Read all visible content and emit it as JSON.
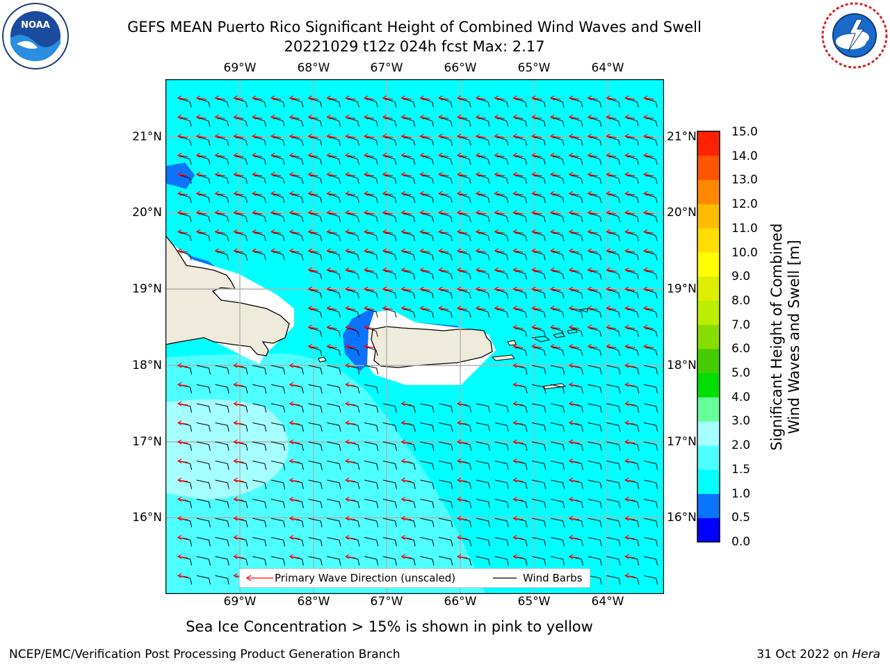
{
  "title_line1": "GEFS MEAN Puerto Rico Significant Height of Combined Wind Waves and Swell",
  "title_line2": "20221029 t12z 024h fcst   Max: 2.17",
  "lon_ticks": [
    "69°W",
    "68°W",
    "67°W",
    "66°W",
    "65°W",
    "64°W"
  ],
  "lat_ticks": [
    "21°N",
    "20°N",
    "19°N",
    "18°N",
    "17°N",
    "16°N"
  ],
  "colorbar": {
    "title_line1": "Significant Height of Combined",
    "title_line2": "Wind Waves and Swell [m]",
    "labels": [
      "15.0",
      "14.0",
      "13.0",
      "12.0",
      "11.0",
      "10.0",
      "9.0",
      "8.0",
      "7.0",
      "6.0",
      "5.0",
      "4.0",
      "3.0",
      "2.0",
      "1.5",
      "1.0",
      "0.5",
      "0.0"
    ],
    "colors_bottom_to_top": [
      "#0000ff",
      "#0a74ff",
      "#00ffff",
      "#4dffff",
      "#a6ffff",
      "#66ff99",
      "#00dd00",
      "#44cc00",
      "#88dd00",
      "#bbee00",
      "#ddee00",
      "#ffff00",
      "#ffdd00",
      "#ffbb00",
      "#ff8800",
      "#ff5500",
      "#ff2200"
    ]
  },
  "legend": {
    "primary_wave": "Primary Wave Direction (unscaled)",
    "wind_barbs": "Wind Barbs",
    "wave_color": "#ff0000",
    "barb_color": "#000000"
  },
  "caption": "Sea Ice Concentration > 15% is shown in pink to yellow",
  "footer_left": "NCEP/EMC/Verification Post Processing Product Generation Branch",
  "footer_right_date": "31 Oct 2022 on ",
  "footer_right_host": "Hera",
  "logos": {
    "left": "noaa-logo",
    "right": "nws-logo"
  }
}
